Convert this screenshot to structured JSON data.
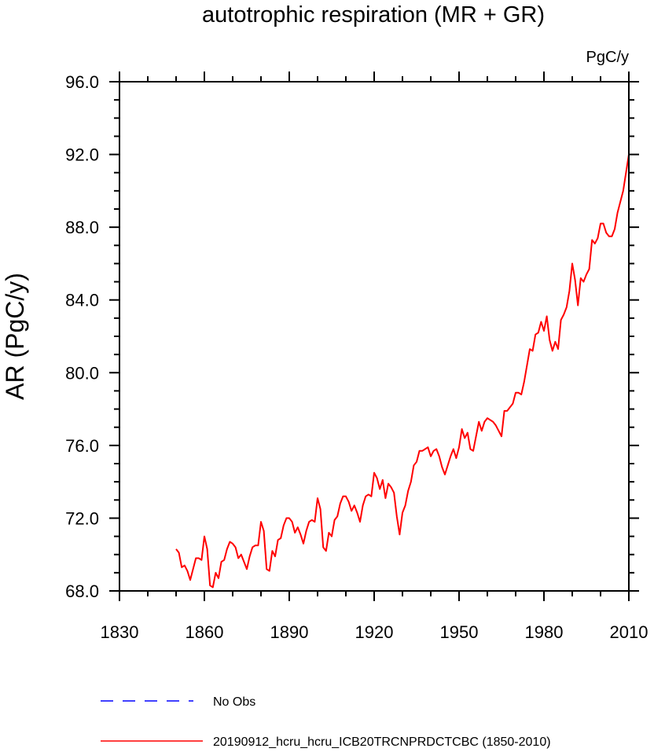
{
  "chart_data": {
    "type": "line",
    "title": "autotrophic respiration (MR + GR)",
    "units": "PgC/y",
    "xlabel": "",
    "ylabel": "AR  (PgC/y)",
    "xlim": [
      1830,
      2010
    ],
    "ylim": [
      68,
      96
    ],
    "xticks": [
      1830,
      1860,
      1890,
      1920,
      1950,
      1980,
      2010
    ],
    "xtick_labels": [
      "1830",
      "1860",
      "1890",
      "1920",
      "1950",
      "1980",
      "2010"
    ],
    "yticks": [
      68,
      72,
      76,
      80,
      84,
      88,
      92,
      96
    ],
    "ytick_labels": [
      "68.0",
      "72.0",
      "76.0",
      "80.0",
      "84.0",
      "88.0",
      "92.0",
      "96.0"
    ],
    "grid": false,
    "series": [
      {
        "name": "20190912_hcru_hcru_ICB20TRCNPRDCTCBC (1850-2010)",
        "color": "#ff0000",
        "style": "solid",
        "x": [
          1850,
          1851,
          1852,
          1853,
          1854,
          1855,
          1856,
          1857,
          1858,
          1859,
          1860,
          1861,
          1862,
          1863,
          1864,
          1865,
          1866,
          1867,
          1868,
          1869,
          1870,
          1871,
          1872,
          1873,
          1874,
          1875,
          1876,
          1877,
          1878,
          1879,
          1880,
          1881,
          1882,
          1883,
          1884,
          1885,
          1886,
          1887,
          1888,
          1889,
          1890,
          1891,
          1892,
          1893,
          1894,
          1895,
          1896,
          1897,
          1898,
          1899,
          1900,
          1901,
          1902,
          1903,
          1904,
          1905,
          1906,
          1907,
          1908,
          1909,
          1910,
          1911,
          1912,
          1913,
          1914,
          1915,
          1916,
          1917,
          1918,
          1919,
          1920,
          1921,
          1922,
          1923,
          1924,
          1925,
          1926,
          1927,
          1928,
          1929,
          1930,
          1931,
          1932,
          1933,
          1934,
          1935,
          1936,
          1937,
          1938,
          1939,
          1940,
          1941,
          1942,
          1943,
          1944,
          1945,
          1946,
          1947,
          1948,
          1949,
          1950,
          1951,
          1952,
          1953,
          1954,
          1955,
          1956,
          1957,
          1958,
          1959,
          1960,
          1961,
          1962,
          1963,
          1964,
          1965,
          1966,
          1967,
          1968,
          1969,
          1970,
          1971,
          1972,
          1973,
          1974,
          1975,
          1976,
          1977,
          1978,
          1979,
          1980,
          1981,
          1982,
          1983,
          1984,
          1985,
          1986,
          1987,
          1988,
          1989,
          1990,
          1991,
          1992,
          1993,
          1994,
          1995,
          1996,
          1997,
          1998,
          1999,
          2000,
          2001,
          2002,
          2003,
          2004,
          2005,
          2006,
          2007,
          2008,
          2009,
          2010
        ],
        "values": [
          70.3,
          70.1,
          69.3,
          69.4,
          69.1,
          68.6,
          69.2,
          69.8,
          69.8,
          69.7,
          71.0,
          70.3,
          68.3,
          68.2,
          69.0,
          68.7,
          69.6,
          69.7,
          70.3,
          70.7,
          70.6,
          70.4,
          69.8,
          70.0,
          69.6,
          69.2,
          69.9,
          70.4,
          70.5,
          70.5,
          71.8,
          71.3,
          69.2,
          69.1,
          70.2,
          69.9,
          70.8,
          70.9,
          71.6,
          72.0,
          72.0,
          71.8,
          71.2,
          71.5,
          71.1,
          70.6,
          71.3,
          71.8,
          71.9,
          71.8,
          73.1,
          72.5,
          70.4,
          70.2,
          71.2,
          71.0,
          71.9,
          72.1,
          72.8,
          73.2,
          73.2,
          72.9,
          72.4,
          72.7,
          72.3,
          71.8,
          72.7,
          73.2,
          73.3,
          73.2,
          74.5,
          74.2,
          73.6,
          74.1,
          73.1,
          73.9,
          73.7,
          73.4,
          72.1,
          71.1,
          72.3,
          72.7,
          73.5,
          74.0,
          74.9,
          75.1,
          75.7,
          75.7,
          75.8,
          75.9,
          75.4,
          75.7,
          75.8,
          75.4,
          74.8,
          74.4,
          74.9,
          75.4,
          75.8,
          75.3,
          75.9,
          76.9,
          76.4,
          76.7,
          75.8,
          75.7,
          76.5,
          77.3,
          76.8,
          77.3,
          77.5,
          77.4,
          77.3,
          77.1,
          76.8,
          76.5,
          77.9,
          77.9,
          78.1,
          78.3,
          78.9,
          78.9,
          78.8,
          79.5,
          80.4,
          81.3,
          81.2,
          82.1,
          82.2,
          82.8,
          82.3,
          83.1,
          81.8,
          81.2,
          81.7,
          81.3,
          82.9,
          83.2,
          83.6,
          84.5,
          86.0,
          85.1,
          83.7,
          85.2,
          85.0,
          85.4,
          85.7,
          87.3,
          87.1,
          87.4,
          88.2,
          88.2,
          87.7,
          87.5,
          87.5,
          87.9,
          88.8,
          89.4,
          90.0,
          91.0,
          92.0
        ]
      }
    ],
    "legend": [
      {
        "label": "No Obs",
        "color": "#0000ff",
        "style": "dashed"
      },
      {
        "label": "20190912_hcru_hcru_ICB20TRCNPRDCTCBC (1850-2010)",
        "color": "#ff0000",
        "style": "solid"
      }
    ],
    "legend_position": "bottom-left"
  }
}
